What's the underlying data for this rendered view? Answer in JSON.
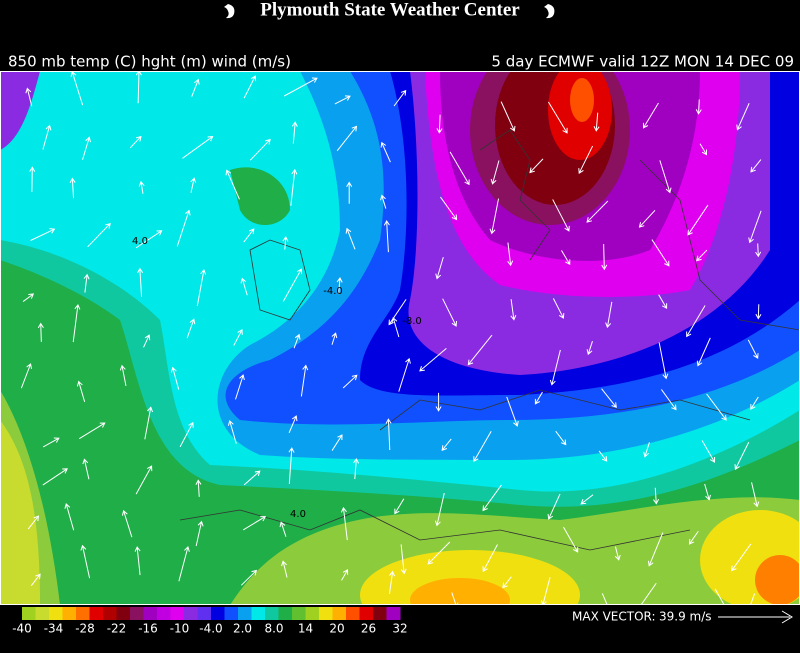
{
  "header": {
    "title": "Plymouth State Weather Center",
    "left_label": "850 mb temp (C) hght (m) wind (m/s)",
    "right_label": "5 day ECMWF valid 12Z MON 14 DEC 09"
  },
  "map": {
    "contour_labels": [
      "4.0",
      "-4.0",
      "-8.0",
      "4.0"
    ]
  },
  "color_scale": {
    "labels": [
      "-40",
      "-34",
      "-28",
      "-22",
      "-16",
      "-10",
      "-4.0",
      "2.0",
      "8.0",
      "14",
      "20",
      "26",
      "32"
    ]
  },
  "max_vector": {
    "label": "MAX VECTOR:",
    "value": "39.9 m/s"
  }
}
